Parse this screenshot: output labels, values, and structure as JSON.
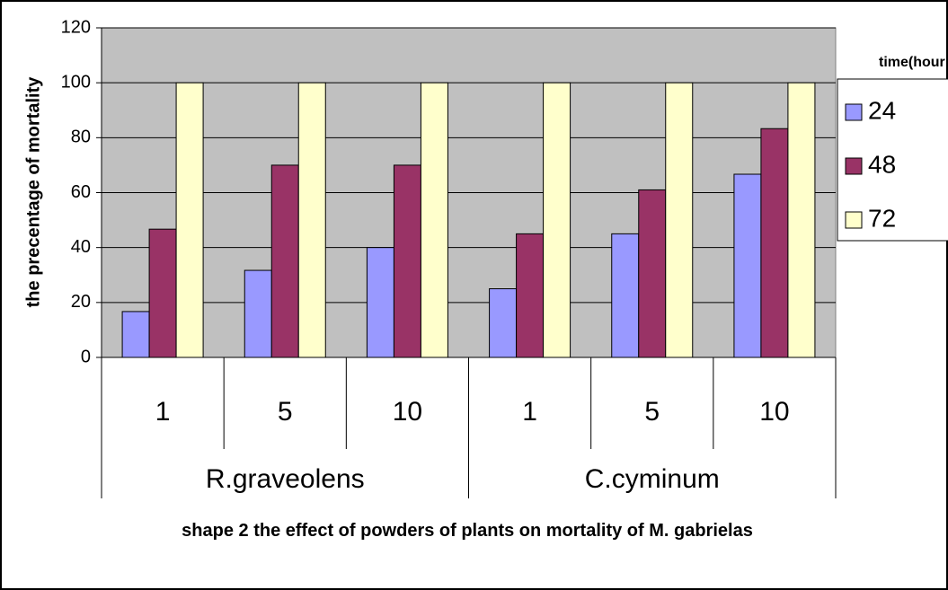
{
  "chart_data": {
    "type": "bar",
    "title": "shape 2 the effect of powders of plants on mortality of M. gabrielas",
    "y_label": "the precentage of mortality",
    "legend_title": "time(hour",
    "categories": [
      "1",
      "5",
      "10",
      "1",
      "5",
      "10"
    ],
    "category_groups": [
      "R.graveolens",
      "C.cyminum"
    ],
    "series": [
      {
        "name": "24",
        "color": "#9999ff",
        "values": [
          16.7,
          31.7,
          40,
          25,
          45,
          66.7
        ]
      },
      {
        "name": "48",
        "color": "#993366",
        "values": [
          46.7,
          70,
          70,
          45,
          61,
          83.3
        ]
      },
      {
        "name": "72",
        "color": "#ffffcc",
        "values": [
          100,
          100,
          100,
          100,
          100,
          100
        ]
      }
    ],
    "ylim": [
      0,
      120
    ],
    "yticks": [
      0,
      20,
      40,
      60,
      80,
      100,
      120
    ],
    "grid": true,
    "plot_background": "#c0c0c0",
    "legend": "right"
  }
}
